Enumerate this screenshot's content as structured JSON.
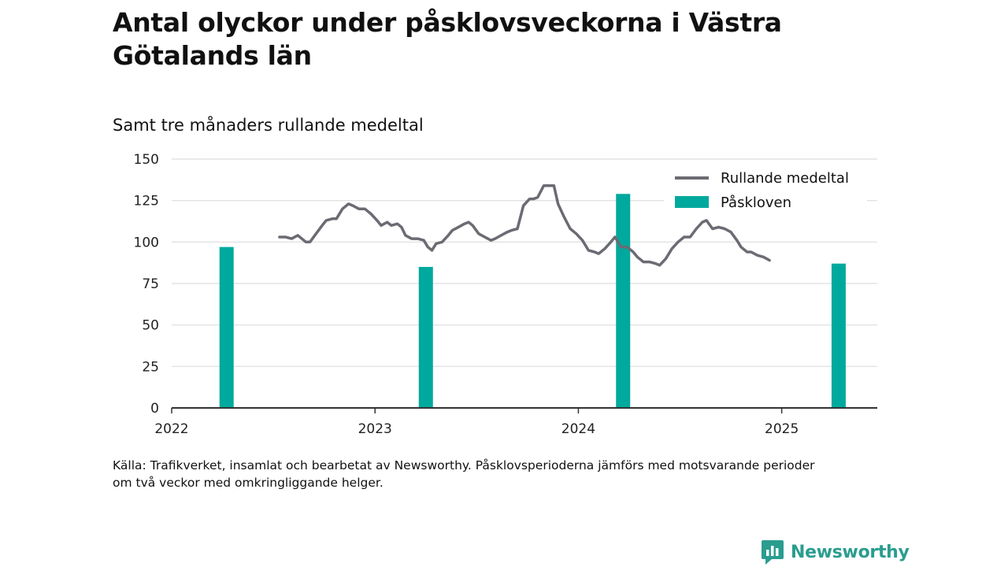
{
  "title": "Antal olyckor under påsklovsveckorna i Västra Götalands län",
  "subtitle": "Samt tre månaders rullande medeltal",
  "source_line1": "Källa: Trafikverket, insamlat och bearbetat av Newsworthy. Påsklovsperioderna jämförs med motsvarande perioder",
  "source_line2": "om två veckor med omkringliggande helger.",
  "logo_text": "Newsworthy",
  "colors": {
    "line": "#6b6b73",
    "bar": "#00a99d",
    "grid": "#dddddd",
    "logo": "#2a9d8f"
  },
  "chart_data": {
    "type": "bar+line",
    "ylim": [
      0,
      150
    ],
    "yticks": [
      0,
      25,
      50,
      75,
      100,
      125,
      150
    ],
    "xlim": [
      2022.0,
      2025.47
    ],
    "xticks": [
      2022,
      2023,
      2024,
      2025
    ],
    "grid": true,
    "legend_position": "top-right",
    "bar_series": {
      "name": "Påskloven",
      "points": [
        {
          "x": 2022.27,
          "y": 97
        },
        {
          "x": 2023.25,
          "y": 85
        },
        {
          "x": 2024.22,
          "y": 129
        },
        {
          "x": 2025.28,
          "y": 87
        }
      ]
    },
    "line_series": {
      "name": "Rullande medeltal",
      "points": [
        [
          2022.53,
          103
        ],
        [
          2022.56,
          103
        ],
        [
          2022.59,
          102
        ],
        [
          2022.62,
          104
        ],
        [
          2022.64,
          102
        ],
        [
          2022.66,
          100
        ],
        [
          2022.68,
          100
        ],
        [
          2022.71,
          105
        ],
        [
          2022.74,
          110
        ],
        [
          2022.76,
          113
        ],
        [
          2022.79,
          114
        ],
        [
          2022.81,
          114
        ],
        [
          2022.84,
          120
        ],
        [
          2022.87,
          123
        ],
        [
          2022.89,
          122
        ],
        [
          2022.92,
          120
        ],
        [
          2022.95,
          120
        ],
        [
          2022.98,
          117
        ],
        [
          2023.01,
          113
        ],
        [
          2023.03,
          110
        ],
        [
          2023.06,
          112
        ],
        [
          2023.08,
          110
        ],
        [
          2023.11,
          111
        ],
        [
          2023.13,
          109
        ],
        [
          2023.15,
          104
        ],
        [
          2023.18,
          102
        ],
        [
          2023.21,
          102
        ],
        [
          2023.24,
          101
        ],
        [
          2023.26,
          97
        ],
        [
          2023.28,
          95
        ],
        [
          2023.3,
          99
        ],
        [
          2023.33,
          100
        ],
        [
          2023.36,
          104
        ],
        [
          2023.38,
          107
        ],
        [
          2023.41,
          109
        ],
        [
          2023.44,
          111
        ],
        [
          2023.46,
          112
        ],
        [
          2023.48,
          110
        ],
        [
          2023.51,
          105
        ],
        [
          2023.54,
          103
        ],
        [
          2023.57,
          101
        ],
        [
          2023.59,
          102
        ],
        [
          2023.62,
          104
        ],
        [
          2023.65,
          106
        ],
        [
          2023.67,
          107
        ],
        [
          2023.7,
          108
        ],
        [
          2023.73,
          122
        ],
        [
          2023.76,
          126
        ],
        [
          2023.78,
          126
        ],
        [
          2023.8,
          127
        ],
        [
          2023.83,
          134
        ],
        [
          2023.86,
          134
        ],
        [
          2023.88,
          134
        ],
        [
          2023.9,
          123
        ],
        [
          2023.93,
          115
        ],
        [
          2023.96,
          108
        ],
        [
          2023.99,
          105
        ],
        [
          2024.02,
          101
        ],
        [
          2024.05,
          95
        ],
        [
          2024.08,
          94
        ],
        [
          2024.1,
          93
        ],
        [
          2024.13,
          96
        ],
        [
          2024.16,
          100
        ],
        [
          2024.18,
          103
        ],
        [
          2024.21,
          97
        ],
        [
          2024.24,
          97
        ],
        [
          2024.27,
          94
        ],
        [
          2024.29,
          91
        ],
        [
          2024.32,
          88
        ],
        [
          2024.35,
          88
        ],
        [
          2024.38,
          87
        ],
        [
          2024.4,
          86
        ],
        [
          2024.43,
          90
        ],
        [
          2024.46,
          96
        ],
        [
          2024.49,
          100
        ],
        [
          2024.52,
          103
        ],
        [
          2024.55,
          103
        ],
        [
          2024.58,
          108
        ],
        [
          2024.61,
          112
        ],
        [
          2024.63,
          113
        ],
        [
          2024.66,
          108
        ],
        [
          2024.69,
          109
        ],
        [
          2024.72,
          108
        ],
        [
          2024.75,
          106
        ],
        [
          2024.78,
          101
        ],
        [
          2024.8,
          97
        ],
        [
          2024.83,
          94
        ],
        [
          2024.85,
          94
        ],
        [
          2024.88,
          92
        ],
        [
          2024.91,
          91
        ],
        [
          2024.94,
          89
        ]
      ]
    }
  }
}
